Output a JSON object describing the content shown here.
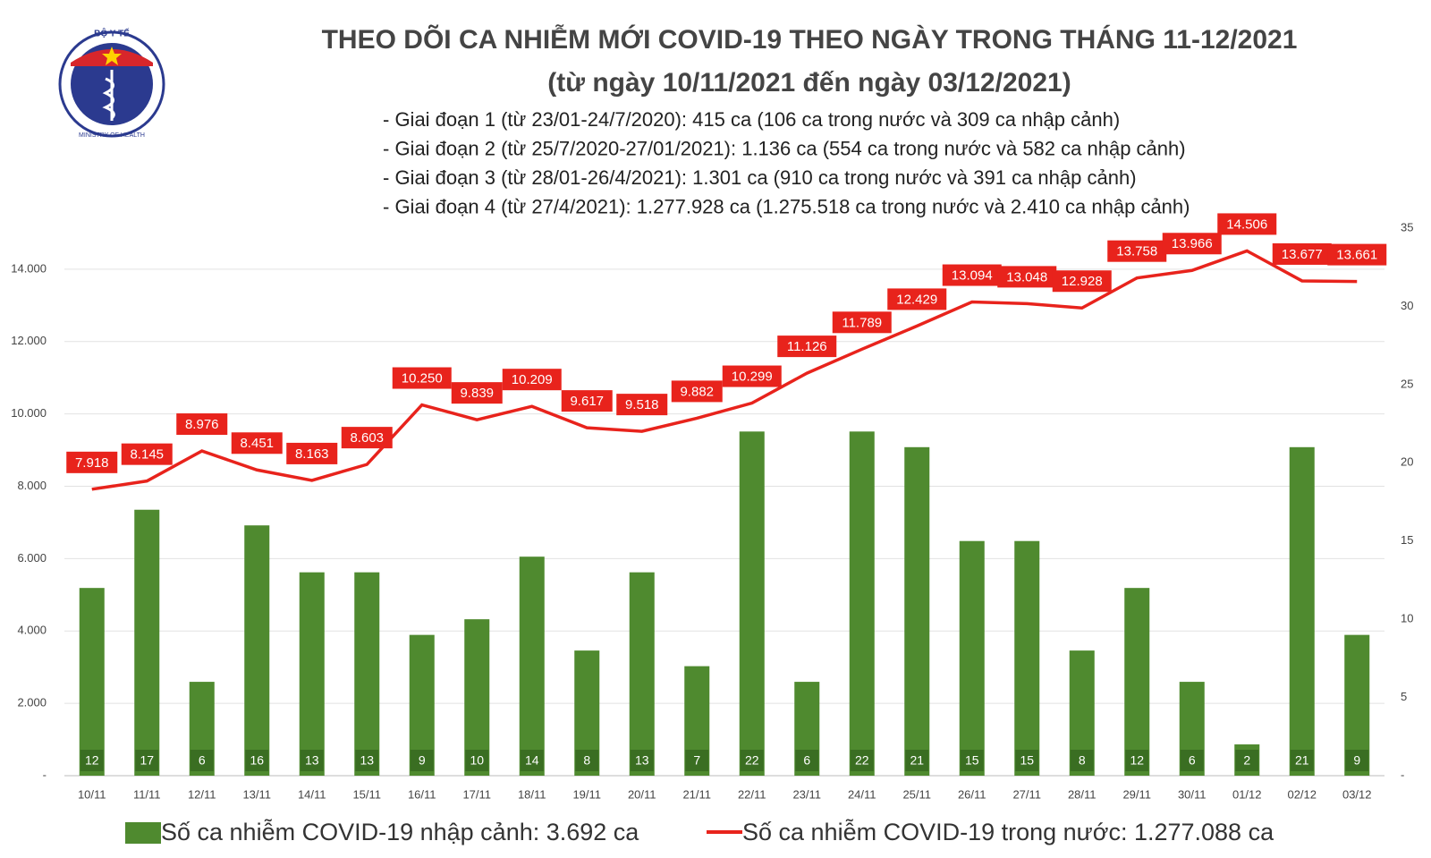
{
  "logo": {
    "top": "BỘ Y TẾ",
    "bottom": "MINISTRY OF HEALTH"
  },
  "chart_data": {
    "type": "combo",
    "title": "THEO DÕI CA NHIỄM MỚI COVID-19 THEO NGÀY TRONG THÁNG 11-12/2021",
    "subtitle": "(từ ngày 10/11/2021 đến ngày 03/12/2021)",
    "notes": [
      "- Giai đoạn 1 (từ 23/01-24/7/2020): 415 ca (106 ca trong nước và 309 ca nhập cảnh)",
      "- Giai đoạn 2 (từ 25/7/2020-27/01/2021): 1.136 ca (554 ca trong nước và 582 ca nhập cảnh)",
      "- Giai đoạn 3 (từ 28/01-26/4/2021): 1.301 ca (910 ca trong nước và 391 ca nhập cảnh)",
      "- Giai đoạn 4 (từ 27/4/2021): 1.277.928 ca (1.275.518 ca trong nước và 2.410 ca nhập cảnh)"
    ],
    "categories": [
      "10/11",
      "11/11",
      "12/11",
      "13/11",
      "14/11",
      "15/11",
      "16/11",
      "17/11",
      "18/11",
      "19/11",
      "20/11",
      "21/11",
      "22/11",
      "23/11",
      "24/11",
      "25/11",
      "26/11",
      "27/11",
      "28/11",
      "29/11",
      "30/11",
      "01/12",
      "02/12",
      "03/12"
    ],
    "series": [
      {
        "name": "Số ca nhiễm COVID-19 nhập cảnh: 3.692 ca",
        "type": "bar",
        "axis": "y2",
        "color": "#4f8a2f",
        "values": [
          12,
          17,
          6,
          16,
          13,
          13,
          9,
          10,
          14,
          8,
          13,
          7,
          22,
          6,
          22,
          21,
          15,
          15,
          8,
          12,
          6,
          2,
          21,
          9
        ]
      },
      {
        "name": "Số ca nhiễm COVID-19 trong nước: 1.277.088 ca",
        "type": "line",
        "color": "#e8231c",
        "values": [
          7918,
          8145,
          8976,
          8451,
          8163,
          8603,
          10250,
          9839,
          10209,
          9617,
          9518,
          9882,
          10299,
          11126,
          11789,
          12429,
          13094,
          13048,
          12928,
          13758,
          13966,
          14506,
          13677,
          13661
        ],
        "value_labels": [
          "7.918",
          "8.145",
          "8.976",
          "8.451",
          "8.163",
          "8.603",
          "10.250",
          "9.839",
          "10.209",
          "9.617",
          "9.518",
          "9.882",
          "10.299",
          "11.126",
          "11.789",
          "12.429",
          "13.094",
          "13.048",
          "12.928",
          "13.758",
          "13.966",
          "14.506",
          "13.677",
          "13.661"
        ]
      }
    ],
    "ylim": [
      0,
      15135
    ],
    "yticks": [
      {
        "value": 0,
        "label": "-"
      },
      {
        "value": 2000,
        "label": "2.000"
      },
      {
        "value": 4000,
        "label": "4.000"
      },
      {
        "value": 6000,
        "label": "6.000"
      },
      {
        "value": 8000,
        "label": "8.000"
      },
      {
        "value": 10000,
        "label": "10.000"
      },
      {
        "value": 12000,
        "label": "12.000"
      },
      {
        "value": 14000,
        "label": "14.000"
      }
    ],
    "y2lim": [
      0,
      35
    ],
    "y2ticks": [
      {
        "value": 0,
        "label": "-"
      },
      5,
      10,
      15,
      20,
      25,
      30,
      35
    ],
    "grid": true
  }
}
